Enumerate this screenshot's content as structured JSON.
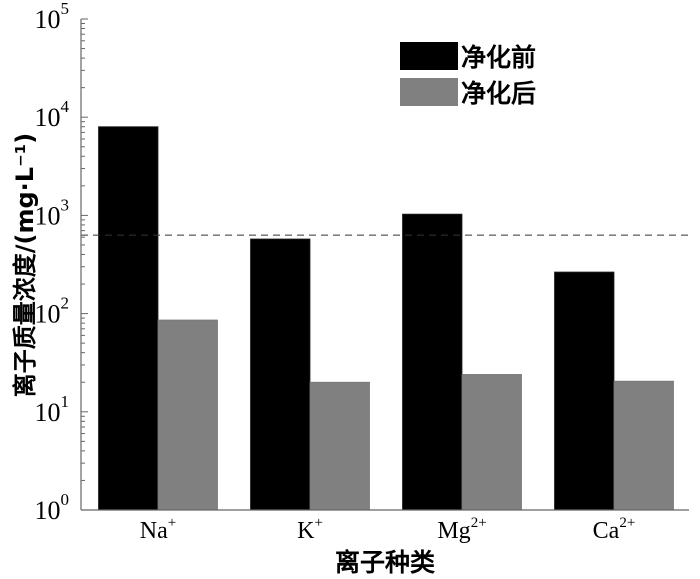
{
  "chart_data": {
    "type": "bar",
    "title": "",
    "xlabel": "离子种类",
    "ylabel": "离子质量浓度/(mg·L⁻¹)",
    "yscale": "log",
    "ylim": [
      1,
      100000
    ],
    "yticks": [
      {
        "base": "10",
        "exp": "0"
      },
      {
        "base": "10",
        "exp": "1"
      },
      {
        "base": "10",
        "exp": "2"
      },
      {
        "base": "10",
        "exp": "3"
      },
      {
        "base": "10",
        "exp": "4"
      },
      {
        "base": "10",
        "exp": "5"
      }
    ],
    "categories": [
      {
        "base": "Na",
        "sup": "+"
      },
      {
        "base": "K",
        "sup": "+"
      },
      {
        "base": "Mg",
        "sup": "2+"
      },
      {
        "base": "Ca",
        "sup": "2+"
      }
    ],
    "series": [
      {
        "name": "净化前",
        "color": "#000000",
        "values": [
          8000,
          575,
          1030,
          265
        ]
      },
      {
        "name": "净化后",
        "color": "#808080",
        "values": [
          86,
          20,
          24,
          20.5
        ]
      }
    ],
    "reference_line": {
      "value": 630,
      "style": "dashed"
    },
    "legend_position": "top-right",
    "grid": false
  }
}
